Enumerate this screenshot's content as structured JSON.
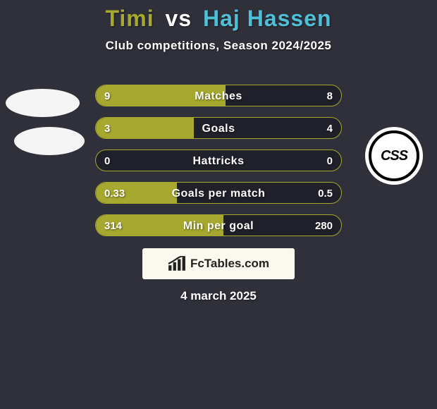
{
  "colors": {
    "page_bg": "#30303a",
    "title_p1": "#a6a82f",
    "title_vs": "#ffffff",
    "title_p2": "#4fbfd8",
    "subtitle": "#ffffff",
    "bar_bg": "#20202a",
    "bar_border": "#a6a82f",
    "bar_fill_left": "#a6a82f",
    "bar_fill_right": "#4fbfd8",
    "bar_label": "#ffffff",
    "bar_value": "#ffffff",
    "logo_left_fill": "#f5f5f5",
    "logo_right_outer": "#ffffff",
    "logo_right_border": "#000000",
    "logo_right_text": "#000000",
    "watermark_bg": "#fbf9ef",
    "watermark_text": "#222222",
    "date": "#ffffff"
  },
  "title": {
    "player1": "Timi",
    "vs": "vs",
    "player2": "Haj Hassen"
  },
  "subtitle": "Club competitions, Season 2024/2025",
  "logo_right_text": "CSS",
  "bars": [
    {
      "label": "Matches",
      "left_val": "9",
      "right_val": "8",
      "left_pct": 53,
      "right_pct": 0
    },
    {
      "label": "Goals",
      "left_val": "3",
      "right_val": "4",
      "left_pct": 40,
      "right_pct": 0
    },
    {
      "label": "Hattricks",
      "left_val": "0",
      "right_val": "0",
      "left_pct": 0,
      "right_pct": 0
    },
    {
      "label": "Goals per match",
      "left_val": "0.33",
      "right_val": "0.5",
      "left_pct": 33,
      "right_pct": 0
    },
    {
      "label": "Min per goal",
      "left_val": "314",
      "right_val": "280",
      "left_pct": 52,
      "right_pct": 0
    }
  ],
  "watermark": "FcTables.com",
  "date": "4 march 2025"
}
